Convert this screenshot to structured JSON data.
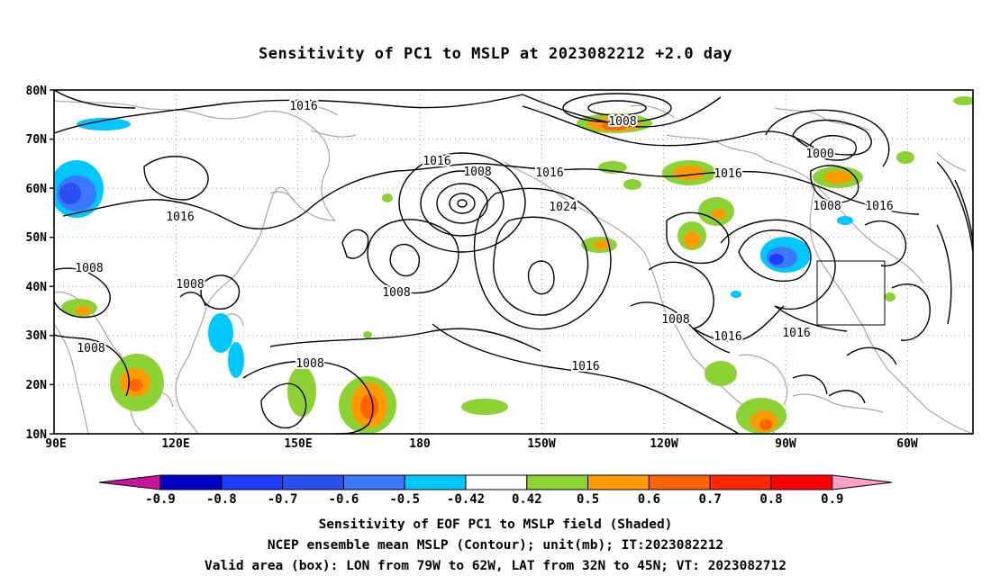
{
  "title": "Sensitivity of PC1 to MSLP at 2023082212 +2.0 day",
  "lat_labels": [
    "80N",
    "70N",
    "60N",
    "50N",
    "40N",
    "30N",
    "20N",
    "10N"
  ],
  "lon_labels": [
    "90E",
    "120E",
    "150E",
    "180",
    "150W",
    "120W",
    "90W",
    "60W"
  ],
  "contour_labels": [
    "1016",
    "1008",
    "1016",
    "1008",
    "1016",
    "1024",
    "1016",
    "1000",
    "1008",
    "1016",
    "1008",
    "1008",
    "1008",
    "1008",
    "1008",
    "1016",
    "1016",
    "1008",
    "1016"
  ],
  "colorbar": {
    "labels": [
      "-0.9",
      "-0.8",
      "-0.7",
      "-0.6",
      "-0.5",
      "-0.42",
      "0.42",
      "0.5",
      "0.6",
      "0.7",
      "0.8",
      "0.9"
    ],
    "colors": [
      "#c8149b",
      "#0000c8",
      "#1e3cff",
      "#2850f0",
      "#3c78ff",
      "#00c8ff",
      "#ffffff",
      "#8cd232",
      "#ff9b00",
      "#ff6400",
      "#ff2800",
      "#ff0000",
      "#ffa0c8"
    ]
  },
  "valid_box": {
    "lon_from": "79W",
    "lon_to": "62W",
    "lat_from": "32N",
    "lat_to": "45N"
  },
  "captions": [
    "Sensitivity of EOF PC1 to MSLP field (Shaded)",
    "NCEP ensemble mean MSLP (Contour); unit(mb); IT:2023082212",
    "Valid area (box): LON from 79W to 62W, LAT from 32N to 45N; VT: 2023082712"
  ]
}
